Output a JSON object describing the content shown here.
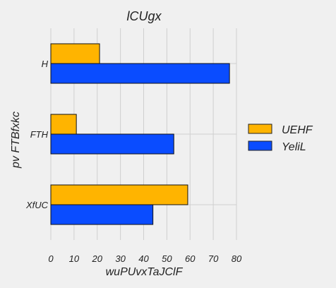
{
  "chart_data": {
    "type": "bar",
    "orientation": "horizontal",
    "title": "lCUgx",
    "xlabel": "wuPUvxTaJClF",
    "ylabel": "pv FTBfxkc",
    "categories": [
      "H",
      "FTH",
      "XfUC"
    ],
    "series": [
      {
        "name": "UEHF",
        "color": "#ffb400",
        "values": [
          21,
          11,
          59
        ]
      },
      {
        "name": "YeliL",
        "color": "#0a4cff",
        "values": [
          77,
          53,
          44
        ]
      }
    ],
    "xlim": [
      0,
      80
    ],
    "xticks": [
      0,
      10,
      20,
      30,
      40,
      50,
      60,
      70,
      80
    ],
    "grid": true,
    "legend_position": "right"
  }
}
